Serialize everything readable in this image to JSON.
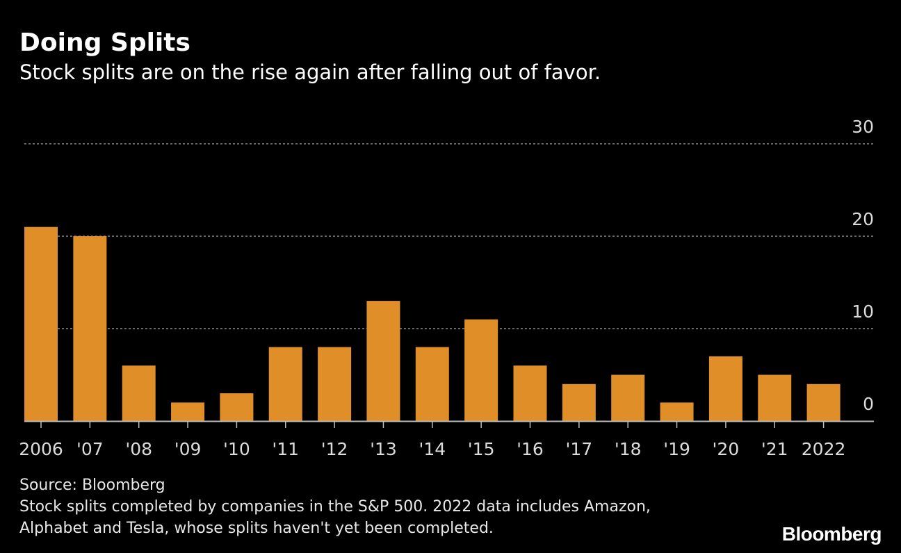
{
  "header": {
    "title": "Doing Splits",
    "subtitle": "Stock splits are on the rise again after falling out of favor."
  },
  "chart_data": {
    "type": "bar",
    "categories": [
      "2006",
      "'07",
      "'08",
      "'09",
      "'10",
      "'11",
      "'12",
      "'13",
      "'14",
      "'15",
      "'16",
      "'17",
      "'18",
      "'19",
      "'20",
      "'21",
      "2022"
    ],
    "values": [
      21,
      20,
      6,
      2,
      3,
      8,
      8,
      13,
      8,
      11,
      6,
      4,
      5,
      2,
      7,
      5,
      4
    ],
    "ylim": [
      0,
      30
    ],
    "yticks": [
      "0",
      "10",
      "20",
      "30"
    ],
    "grid": true,
    "y_axis_side": "right",
    "bar_color": "#e08f28"
  },
  "footer": {
    "source": "Source: Bloomberg",
    "note_line1": "Stock splits completed by companies in the S&P 500. 2022 data includes Amazon,",
    "note_line2": "Alphabet and Tesla, whose splits haven't yet been completed."
  },
  "branding": {
    "logo_text": "Bloomberg"
  }
}
